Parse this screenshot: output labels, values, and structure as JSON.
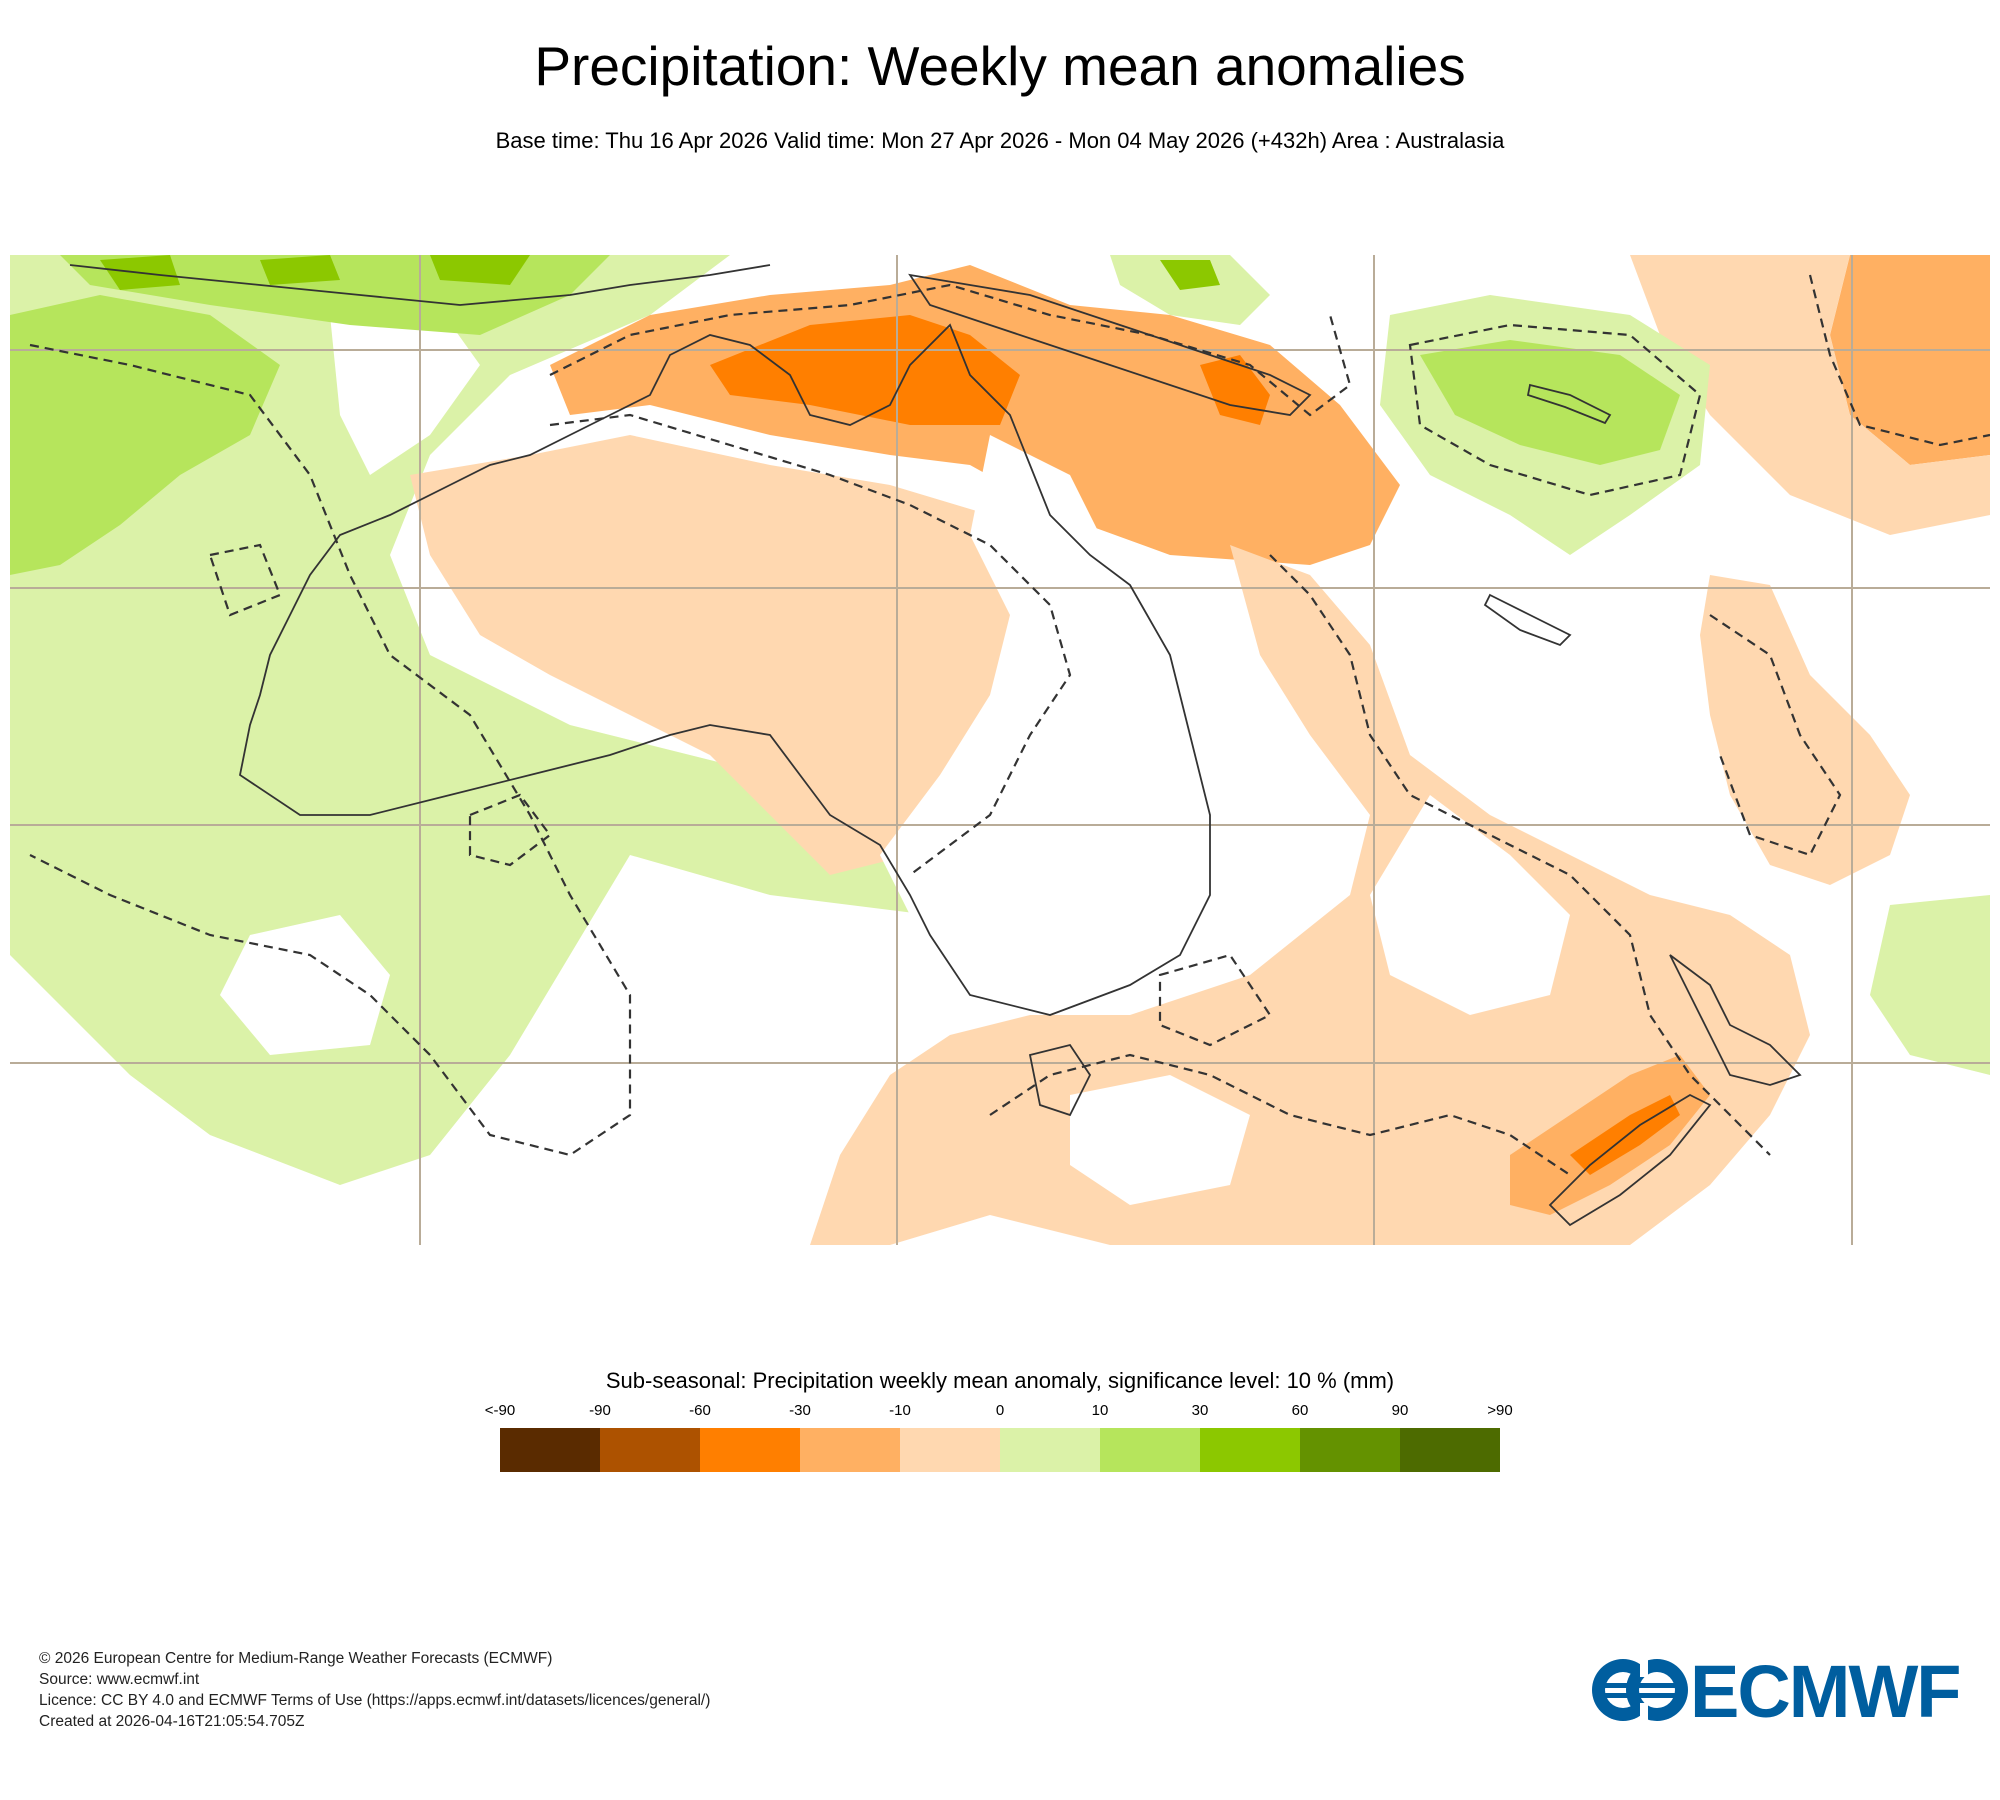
{
  "header": {
    "title": "Precipitation: Weekly mean anomalies",
    "subtitle": "Base time: Thu 16 Apr 2026 Valid time: Mon 27 Apr 2026 - Mon 04 May 2026 (+432h) Area : Australasia"
  },
  "legend": {
    "title": "Sub-seasonal: Precipitation weekly mean anomaly, significance level: 10 % (mm)",
    "labels": [
      "<-90",
      "-90",
      "-60",
      "-30",
      "-10",
      "0",
      "10",
      "30",
      "60",
      "90",
      ">90"
    ],
    "colors": [
      "#5a2b00",
      "#ad5200",
      "#ff7f00",
      "#ffb062",
      "#ffd8b0",
      "#dbf2a8",
      "#b6e55c",
      "#8cc800",
      "#649200",
      "#4d6b00"
    ]
  },
  "map": {
    "colors": {
      "dark_orange": "#ff7f00",
      "orange": "#ffb062",
      "light_orange": "#ffd8b0",
      "light_green": "#dbf2a8",
      "green": "#b6e55c",
      "bright_green": "#8cc800",
      "gridline": "#b9ac98",
      "coast": "#333333"
    }
  },
  "footer": {
    "copyright": "© 2026 European Centre for Medium-Range Weather Forecasts (ECMWF)",
    "source": "Source: www.ecmwf.int",
    "licence": "Licence: CC BY 4.0 and ECMWF Terms of Use (https://apps.ecmwf.int/datasets/licences/general/)",
    "created": "Created at 2026-04-16T21:05:54.705Z"
  },
  "logo": {
    "text": "ECMWF",
    "color": "#005e9f",
    "icon": "ecmwf-logo-icon"
  }
}
